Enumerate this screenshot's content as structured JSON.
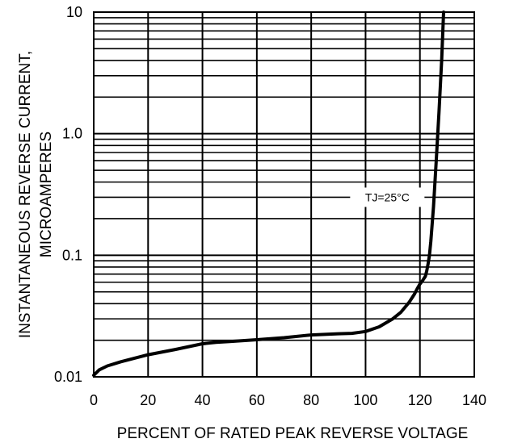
{
  "chart_data": {
    "type": "line",
    "title": "",
    "xlabel": "PERCENT OF RATED PEAK REVERSE VOLTAGE",
    "ylabel_lines": [
      "INSTANTANEOUS REVERSE CURRENT,",
      "MICROAMPERES"
    ],
    "x_scale": "linear",
    "y_scale": "log",
    "xlim": [
      0,
      140
    ],
    "ylim": [
      0.01,
      10
    ],
    "x_ticks": [
      0,
      20,
      40,
      60,
      80,
      100,
      120,
      140
    ],
    "x_tick_labels": [
      "0",
      "20",
      "40",
      "60",
      "80",
      "100",
      "120",
      "140"
    ],
    "y_ticks": [
      0.01,
      0.1,
      1.0,
      10
    ],
    "y_tick_labels": [
      "0.01",
      "0.1",
      "1.0",
      "10"
    ],
    "grid": true,
    "annotation": {
      "text": "TJ=25°C",
      "x": 108,
      "y": 0.3
    },
    "series": [
      {
        "x": [
          0,
          2,
          5,
          10,
          20,
          30,
          40,
          45,
          50,
          60,
          70,
          80,
          90,
          95,
          100,
          105,
          110,
          113,
          116,
          118,
          119,
          120,
          121,
          122,
          122.5,
          123,
          123.5,
          124,
          125,
          126,
          127,
          128,
          128.7
        ],
        "y": [
          0.0103,
          0.0114,
          0.0123,
          0.0133,
          0.0152,
          0.0168,
          0.0187,
          0.0192,
          0.0195,
          0.0202,
          0.021,
          0.0221,
          0.0226,
          0.0228,
          0.0236,
          0.0258,
          0.03,
          0.034,
          0.041,
          0.048,
          0.053,
          0.058,
          0.062,
          0.067,
          0.074,
          0.085,
          0.1,
          0.13,
          0.25,
          0.6,
          1.5,
          4.0,
          10
        ]
      }
    ]
  }
}
